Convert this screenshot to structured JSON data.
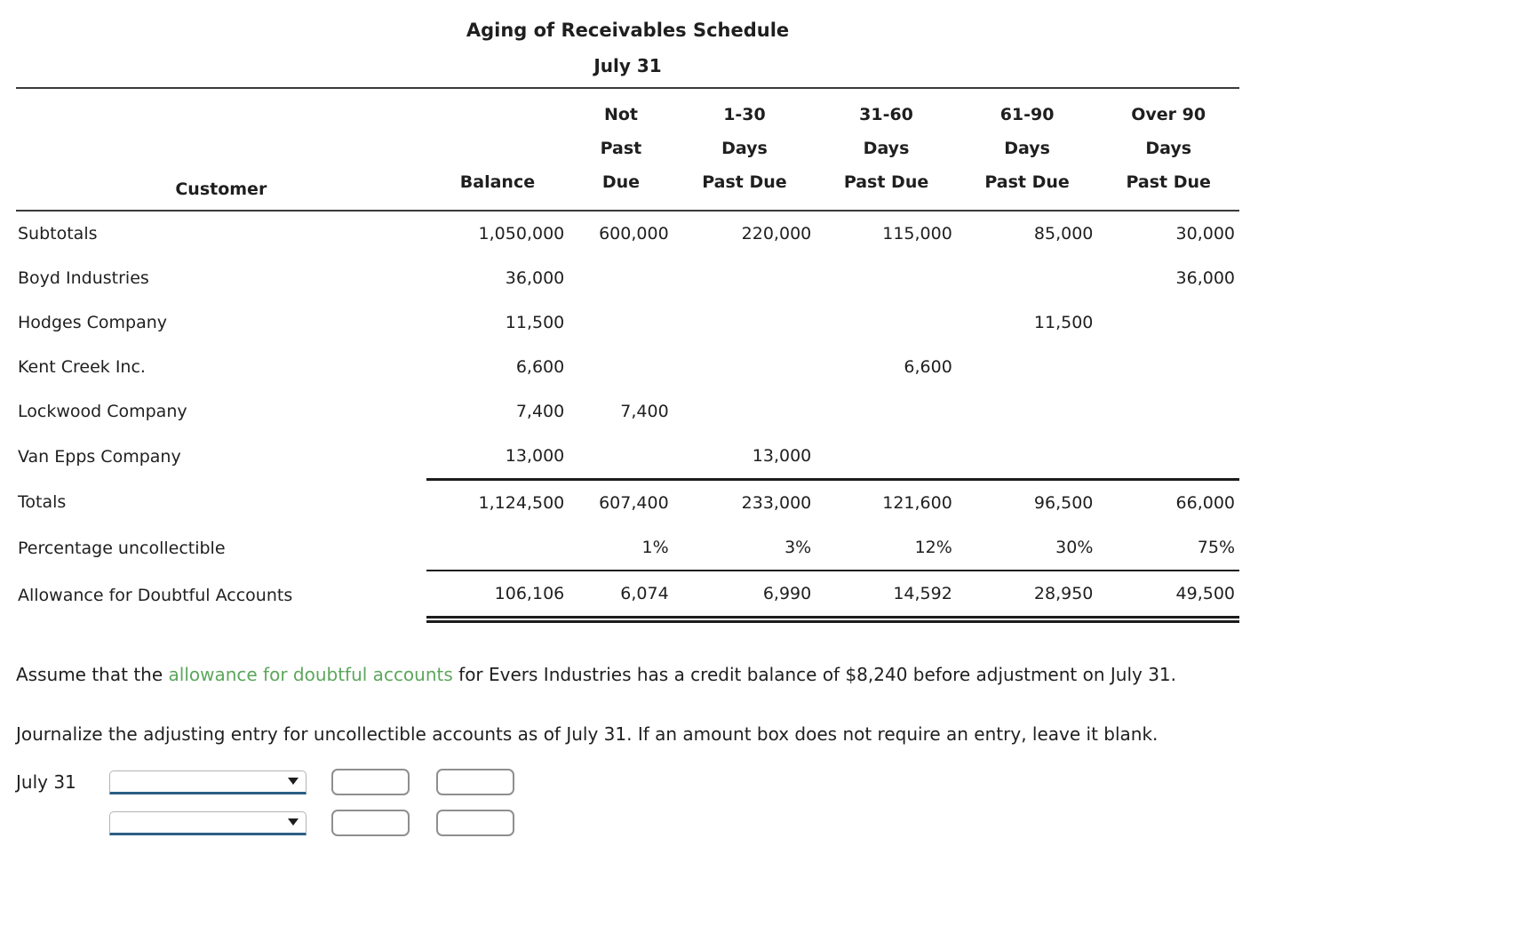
{
  "title": "Aging of Receivables Schedule",
  "subtitle": "July 31",
  "table": {
    "customer_header": "Customer",
    "columns": [
      {
        "lines": [
          "Balance"
        ]
      },
      {
        "lines": [
          "Not",
          "Past",
          "Due"
        ]
      },
      {
        "lines": [
          "1-30",
          "Days",
          "Past Due"
        ]
      },
      {
        "lines": [
          "31-60",
          "Days",
          "Past Due"
        ]
      },
      {
        "lines": [
          "61-90",
          "Days",
          "Past Due"
        ]
      },
      {
        "lines": [
          "Over 90",
          "Days",
          "Past Due"
        ]
      }
    ],
    "rows": [
      {
        "customer": "Subtotals",
        "values": [
          "1,050,000",
          "600,000",
          "220,000",
          "115,000",
          "85,000",
          "30,000"
        ]
      },
      {
        "customer": "Boyd Industries",
        "values": [
          "36,000",
          "",
          "",
          "",
          "",
          "36,000"
        ]
      },
      {
        "customer": "Hodges Company",
        "values": [
          "11,500",
          "",
          "",
          "",
          "11,500",
          ""
        ]
      },
      {
        "customer": "Kent Creek Inc.",
        "values": [
          "6,600",
          "",
          "",
          "6,600",
          "",
          ""
        ]
      },
      {
        "customer": "Lockwood Company",
        "values": [
          "7,400",
          "7,400",
          "",
          "",
          "",
          ""
        ]
      },
      {
        "customer": "Van Epps Company",
        "values": [
          "13,000",
          "",
          "13,000",
          "",
          "",
          ""
        ]
      }
    ],
    "totals_row": {
      "customer": "Totals",
      "values": [
        "1,124,500",
        "607,400",
        "233,000",
        "121,600",
        "96,500",
        "66,000"
      ]
    },
    "percentage_row": {
      "customer": "Percentage uncollectible",
      "values": [
        "",
        "1%",
        "3%",
        "12%",
        "30%",
        "75%"
      ]
    },
    "allowance_row": {
      "customer": "Allowance for Doubtful Accounts",
      "values": [
        "106,106",
        "6,074",
        "6,990",
        "14,592",
        "28,950",
        "49,500"
      ]
    }
  },
  "instructions": {
    "assume_prefix": "Assume that the ",
    "assume_link": "allowance for doubtful accounts",
    "assume_suffix": " for Evers Industries has a credit balance of $8,240 before adjustment on July 31.",
    "journalize": "Journalize the adjusting entry for uncollectible accounts as of July 31. If an amount box does not require an entry, leave it blank."
  },
  "journal": {
    "date_label": "July 31",
    "rows": [
      {
        "account_value": "",
        "debit_value": "",
        "credit_value": ""
      },
      {
        "account_value": "",
        "debit_value": "",
        "credit_value": ""
      }
    ]
  },
  "colors": {
    "link_green": "#5ca75c",
    "select_underline_blue": "#2b5e85",
    "rule_dark": "#1c1c1c"
  }
}
